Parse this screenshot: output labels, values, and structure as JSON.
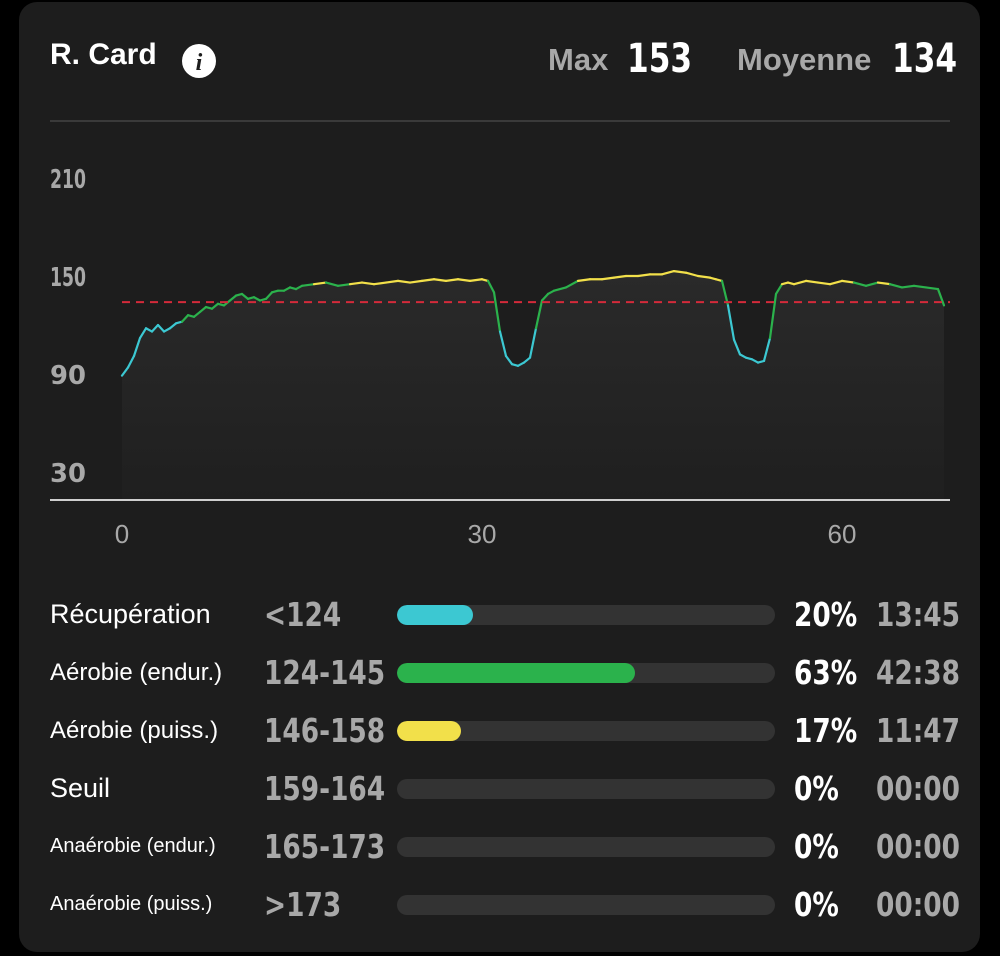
{
  "header": {
    "title": "R. Card",
    "max_label": "Max",
    "max_value": "153",
    "avg_label": "Moyenne",
    "avg_value": "134"
  },
  "chart_data": {
    "type": "line",
    "y_ticks": [
      "210",
      "150",
      "90",
      "30"
    ],
    "x_ticks": [
      "0",
      "30",
      "60"
    ],
    "average_line": 134,
    "ylim": [
      30,
      210
    ],
    "xlim": [
      0,
      69
    ],
    "zone_colors": {
      "recuperation": "#3cc8d2",
      "aerobie_endur": "#2bb24c",
      "aerobie_puiss": "#f2e04a"
    },
    "series": [
      {
        "x": [
          0,
          0.5,
          1,
          1.5,
          2,
          2.5,
          3,
          3.5,
          4,
          4.5,
          5,
          5.5,
          6,
          6.5,
          7,
          7.5,
          8,
          8.5,
          9,
          9.5,
          10,
          10.5,
          11,
          11.5,
          12,
          12.5,
          13,
          13.5,
          14,
          14.5,
          15,
          16,
          17,
          18,
          19,
          20,
          21,
          22,
          23,
          24,
          25,
          26,
          27,
          28,
          29,
          30,
          30.5,
          31,
          31.5,
          32,
          32.5,
          33,
          33.5,
          34,
          34.5,
          35,
          35.5,
          36,
          37,
          38,
          39,
          40,
          41,
          42,
          43,
          44,
          45,
          46,
          47,
          48,
          49,
          49.5,
          50,
          50.5,
          51,
          51.5,
          52,
          52.5,
          53,
          53.5,
          54,
          54.5,
          55,
          55.5,
          56,
          57,
          58,
          59,
          60,
          61,
          62,
          63,
          64,
          65,
          66,
          67,
          68,
          68.5
        ],
        "values": [
          89,
          94,
          101,
          112,
          118,
          116,
          120,
          116,
          118,
          121,
          122,
          126,
          125,
          128,
          131,
          130,
          133,
          132,
          135,
          138,
          139,
          136,
          137,
          135,
          136,
          140,
          141,
          141,
          143,
          142,
          144,
          145,
          146,
          144,
          145,
          146,
          145,
          146,
          147,
          146,
          147,
          148,
          147,
          148,
          147,
          148,
          147,
          140,
          116,
          101,
          96,
          95,
          97,
          100,
          118,
          135,
          139,
          141,
          143,
          147,
          148,
          148,
          149,
          150,
          150,
          151,
          151,
          153,
          152,
          150,
          149,
          148,
          147,
          132,
          111,
          102,
          100,
          99,
          97,
          98,
          112,
          139,
          145,
          146,
          145,
          147,
          146,
          145,
          147,
          146,
          144,
          146,
          145,
          143,
          144,
          143,
          142,
          132
        ]
      }
    ]
  },
  "zones": [
    {
      "label": "Récupération",
      "range": "<124",
      "percent": 20,
      "percent_text": "20%",
      "time": "13:45",
      "color": "#3cc8d2"
    },
    {
      "label": "Aérobie (endur.)",
      "range": "124-145",
      "percent": 63,
      "percent_text": "63%",
      "time": "42:38",
      "color": "#2bb24c"
    },
    {
      "label": "Aérobie (puiss.)",
      "range": "146-158",
      "percent": 17,
      "percent_text": "17%",
      "time": "11:47",
      "color": "#f2e04a"
    },
    {
      "label": "Seuil",
      "range": "159-164",
      "percent": 0,
      "percent_text": "0%",
      "time": "00:00",
      "color": "#333333"
    },
    {
      "label": "Anaérobie (endur.)",
      "range": "165-173",
      "percent": 0,
      "percent_text": "0%",
      "time": "00:00",
      "color": "#333333"
    },
    {
      "label": "Anaérobie (puiss.)",
      "range": ">173",
      "percent": 0,
      "percent_text": "0%",
      "time": "00:00",
      "color": "#333333"
    }
  ],
  "icons": {
    "info": "info-icon"
  }
}
